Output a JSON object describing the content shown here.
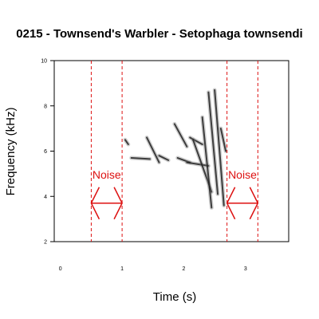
{
  "chart_data": {
    "type": "spectrogram",
    "title": "0215 - Townsend's Warbler - Setophaga townsendi",
    "xlabel": "Time (s)",
    "ylabel": "Frequency (kHz)",
    "xlim": [
      -0.1,
      3.7
    ],
    "ylim": [
      2,
      10
    ],
    "x_ticks": [
      "0",
      "1",
      "2",
      "3"
    ],
    "y_ticks": [
      "2",
      "4",
      "6",
      "8",
      "10"
    ],
    "grid": false,
    "noise_color": "#dd1111",
    "noise_windows": [
      {
        "label": "Noise",
        "start": 0.5,
        "end": 1.0,
        "arrow_freq": 3.7
      },
      {
        "label": "Noise",
        "start": 2.7,
        "end": 3.2,
        "arrow_freq": 3.7
      }
    ],
    "song_elements": [
      {
        "t": [
          1.05,
          1.1
        ],
        "f": [
          6.5,
          6.3
        ]
      },
      {
        "t": [
          1.15,
          1.45
        ],
        "f": [
          5.7,
          5.65
        ]
      },
      {
        "t": [
          1.4,
          1.6
        ],
        "f": [
          6.6,
          5.5
        ]
      },
      {
        "t": [
          1.6,
          1.75
        ],
        "f": [
          5.8,
          5.6
        ]
      },
      {
        "t": [
          1.85,
          2.05
        ],
        "f": [
          7.2,
          6.2
        ]
      },
      {
        "t": [
          1.9,
          2.1
        ],
        "f": [
          5.7,
          5.5
        ]
      },
      {
        "t": [
          2.1,
          2.3
        ],
        "f": [
          6.6,
          6.3
        ]
      },
      {
        "t": [
          2.05,
          2.4
        ],
        "f": [
          5.5,
          5.35
        ]
      },
      {
        "t": [
          2.15,
          2.45
        ],
        "f": [
          6.5,
          4.2
        ]
      },
      {
        "t": [
          2.3,
          2.45
        ],
        "f": [
          7.5,
          3.5
        ]
      },
      {
        "t": [
          2.4,
          2.55
        ],
        "f": [
          8.6,
          4.1
        ]
      },
      {
        "t": [
          2.5,
          2.65
        ],
        "f": [
          8.7,
          3.6
        ]
      },
      {
        "t": [
          2.6,
          2.68
        ],
        "f": [
          7.0,
          6.0
        ]
      }
    ]
  }
}
